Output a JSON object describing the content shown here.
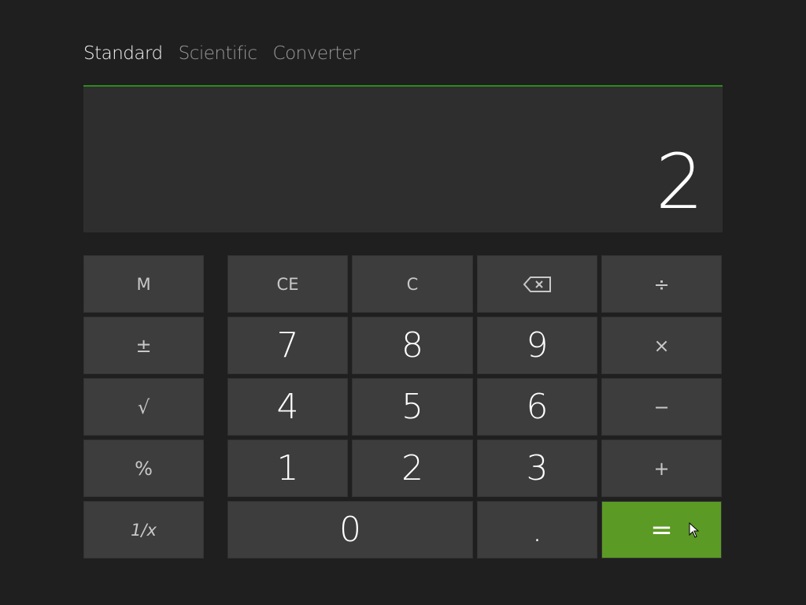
{
  "tabs": [
    {
      "label": "Standard",
      "active": true
    },
    {
      "label": "Scientific",
      "active": false
    },
    {
      "label": "Converter",
      "active": false
    }
  ],
  "display": {
    "value": "2"
  },
  "colors": {
    "accent": "#5b9a24",
    "accent_line": "#2e8b1e",
    "background": "#1f1f1f",
    "button": "#3d3d3d",
    "display": "#2e2e2e"
  },
  "memory_column": [
    "M",
    "±",
    "√",
    "%",
    "1/x"
  ],
  "keypad": {
    "ce": "CE",
    "c": "C",
    "backspace_icon": "backspace-icon",
    "divide": "÷",
    "seven": "7",
    "eight": "8",
    "nine": "9",
    "multiply": "×",
    "four": "4",
    "five": "5",
    "six": "6",
    "minus": "−",
    "one": "1",
    "two": "2",
    "three": "3",
    "plus": "+",
    "zero": "0",
    "decimal": ".",
    "equals": "="
  }
}
